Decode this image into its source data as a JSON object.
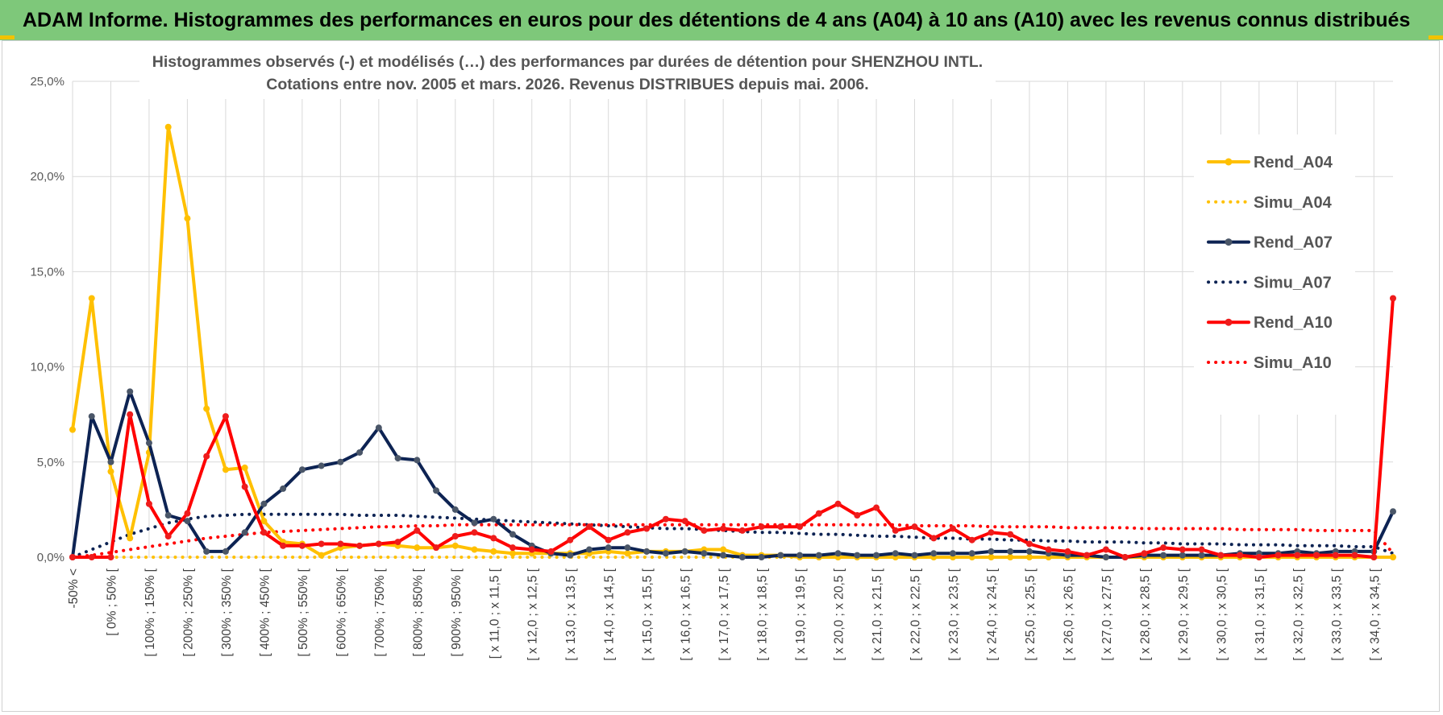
{
  "header": {
    "title": "ADAM Informe. Histogrammes des performances en euros pour des détentions de 4 ans (A04) à 10 ans (A10) avec les revenus connus distribués"
  },
  "colors": {
    "banner": "#7ec87a",
    "A04": "#ffc000",
    "A07": "#0d2353",
    "A10": "#ff0000",
    "marker_A04": "#ffc000",
    "marker_A07": "#4a5668",
    "marker_A10": "#ee1c1c",
    "grid": "#d9d9d9"
  },
  "chart_data": {
    "type": "line",
    "title_line1": "Histogrammes observés (-) et modélisés (…) des performances par durées de détention pour SHENZHOU INTL.",
    "title_line2": "Cotations entre nov. 2005 et mars. 2026.  Revenus DISTRIBUES depuis mai. 2006.",
    "xlabel": "",
    "ylabel": "",
    "ylim": [
      0,
      25
    ],
    "yticks": [
      "0,0%",
      "5,0%",
      "10,0%",
      "15,0%",
      "20,0%",
      "25,0%"
    ],
    "grid": true,
    "legend_position": "right",
    "legend": [
      "Rend_A04",
      "Simu_A04",
      "Rend_A07",
      "Simu_A07",
      "Rend_A10",
      "Simu_A10"
    ],
    "x_tick_labels": [
      "-50% <",
      "[ 0% ; 50% [",
      "[ 100% ; 150% [",
      "[ 200% ; 250% [",
      "[ 300% ; 350% [",
      "[ 400% ; 450% [",
      "[ 500% ; 550% [",
      "[ 600% ; 650% [",
      "[ 700% ; 750% [",
      "[ 800% ; 850% [",
      "[ 900% ; 950% [",
      "[ x 11,0 ; x 11,5 [",
      "[ x 12,0 ; x 12,5 [",
      "[ x 13,0 ; x 13,5 [",
      "[ x 14,0 ; x 14,5 [",
      "[ x 15,0 ; x 15,5 [",
      "[ x 16,0 ; x 16,5 [",
      "[ x 17,0 ; x 17,5 [",
      "[ x 18,0 ; x 18,5 [",
      "[ x 19,0 ; x 19,5 [",
      "[ x 20,0 ; x 20,5 [",
      "[ x 21,0 ; x 21,5 [",
      "[ x 22,0 ; x 22,5 [",
      "[ x 23,0 ; x 23,5 [",
      "[ x 24,0 ; x 24,5 [",
      "[ x 25,0 ; x 25,5 [",
      "[ x 26,0 ; x 26,5 [",
      "[ x 27,0 ; x 27,5 [",
      "[ x 28,0 ; x 28,5 [",
      "[ x 29,0 ; x 29,5 [",
      "[ x 30,0 ; x 30,5 [",
      "[ x 31,0 ; x 31,5 [",
      "[ x 32,0 ; x 32,5 [",
      "[ x 33,0 ; x 33,5 [",
      "[ x 34,0 ; x 34,5 ["
    ],
    "num_points": 70,
    "series": [
      {
        "name": "Rend_A04",
        "style": "solid",
        "values": [
          6.7,
          13.6,
          4.5,
          1.0,
          5.5,
          22.6,
          17.8,
          7.8,
          4.6,
          4.7,
          1.9,
          0.8,
          0.7,
          0.1,
          0.5,
          0.6,
          0.7,
          0.6,
          0.5,
          0.5,
          0.6,
          0.4,
          0.3,
          0.2,
          0.2,
          0.2,
          0.2,
          0.2,
          0.3,
          0.2,
          0.3,
          0.3,
          0.3,
          0.4,
          0.4,
          0.1,
          0.1,
          0.1,
          0.0,
          0.0,
          0.0,
          0.0,
          0.0,
          0.0,
          0.0,
          0.0,
          0.0,
          0.0,
          0.0,
          0.0,
          0.0,
          0.0,
          0.0,
          0.0,
          0.0,
          0.0,
          0.0,
          0.0,
          0.0,
          0.0,
          0.0,
          0.0,
          0.0,
          0.0,
          0.0,
          0.0,
          0.0,
          0.0,
          0.0,
          0.0
        ]
      },
      {
        "name": "Simu_A04",
        "style": "dotted",
        "values": [
          0.0,
          0.0,
          0.0,
          0.0,
          0.0,
          0.0,
          0.0,
          0.0,
          0.0,
          0.0,
          0.0,
          0.0,
          0.0,
          0.0,
          0.0,
          0.0,
          0.0,
          0.0,
          0.0,
          0.0,
          0.0,
          0.0,
          0.0,
          0.0,
          0.0,
          0.0,
          0.0,
          0.0,
          0.0,
          0.0,
          0.0,
          0.0,
          0.0,
          0.0,
          0.0,
          0.0,
          0.0,
          0.0,
          0.0,
          0.0,
          0.0,
          0.0,
          0.0,
          0.0,
          0.0,
          0.0,
          0.0,
          0.0,
          0.0,
          0.0,
          0.0,
          0.0,
          0.0,
          0.0,
          0.0,
          0.0,
          0.0,
          0.0,
          0.0,
          0.0,
          0.0,
          0.0,
          0.0,
          0.0,
          0.0,
          0.0,
          0.0,
          0.0,
          0.0,
          0.0
        ]
      },
      {
        "name": "Rend_A07",
        "style": "solid",
        "values": [
          0.0,
          7.4,
          5.0,
          8.7,
          6.0,
          2.2,
          1.9,
          0.3,
          0.3,
          1.3,
          2.8,
          3.6,
          4.6,
          4.8,
          5.0,
          5.5,
          6.8,
          5.2,
          5.1,
          3.5,
          2.5,
          1.8,
          2.0,
          1.2,
          0.6,
          0.2,
          0.1,
          0.4,
          0.5,
          0.5,
          0.3,
          0.2,
          0.3,
          0.2,
          0.1,
          0.0,
          0.0,
          0.1,
          0.1,
          0.1,
          0.2,
          0.1,
          0.1,
          0.2,
          0.1,
          0.2,
          0.2,
          0.2,
          0.3,
          0.3,
          0.3,
          0.2,
          0.1,
          0.1,
          0.0,
          0.0,
          0.1,
          0.1,
          0.1,
          0.1,
          0.1,
          0.2,
          0.2,
          0.2,
          0.3,
          0.2,
          0.3,
          0.3,
          0.3,
          2.4
        ]
      },
      {
        "name": "Simu_A07",
        "style": "dotted",
        "values": [
          0.0,
          0.4,
          0.8,
          1.2,
          1.5,
          1.8,
          2.0,
          2.15,
          2.2,
          2.25,
          2.25,
          2.25,
          2.25,
          2.25,
          2.25,
          2.2,
          2.2,
          2.2,
          2.15,
          2.1,
          2.05,
          2.0,
          1.95,
          1.9,
          1.85,
          1.8,
          1.75,
          1.7,
          1.65,
          1.6,
          1.55,
          1.5,
          1.5,
          1.45,
          1.4,
          1.35,
          1.3,
          1.3,
          1.25,
          1.2,
          1.2,
          1.15,
          1.1,
          1.1,
          1.05,
          1.0,
          1.0,
          0.95,
          0.95,
          0.9,
          0.9,
          0.85,
          0.85,
          0.8,
          0.8,
          0.8,
          0.75,
          0.75,
          0.7,
          0.7,
          0.7,
          0.65,
          0.65,
          0.65,
          0.6,
          0.6,
          0.6,
          0.55,
          0.55,
          0.2
        ]
      },
      {
        "name": "Rend_A10",
        "style": "solid",
        "values": [
          0.0,
          0.0,
          0.0,
          7.5,
          2.8,
          1.1,
          2.3,
          5.3,
          7.4,
          3.7,
          1.3,
          0.6,
          0.6,
          0.7,
          0.7,
          0.6,
          0.7,
          0.8,
          1.4,
          0.5,
          1.1,
          1.3,
          1.0,
          0.5,
          0.4,
          0.3,
          0.9,
          1.6,
          0.9,
          1.3,
          1.5,
          2.0,
          1.9,
          1.4,
          1.5,
          1.4,
          1.6,
          1.6,
          1.6,
          2.3,
          2.8,
          2.2,
          2.6,
          1.4,
          1.6,
          1.0,
          1.5,
          0.9,
          1.3,
          1.2,
          0.7,
          0.4,
          0.3,
          0.1,
          0.4,
          0.0,
          0.2,
          0.5,
          0.4,
          0.4,
          0.1,
          0.1,
          0.0,
          0.1,
          0.1,
          0.1,
          0.1,
          0.1,
          0.0,
          13.6
        ]
      },
      {
        "name": "Simu_A10",
        "style": "dotted",
        "values": [
          0.0,
          0.1,
          0.25,
          0.4,
          0.55,
          0.7,
          0.85,
          1.0,
          1.1,
          1.2,
          1.3,
          1.35,
          1.4,
          1.45,
          1.5,
          1.55,
          1.6,
          1.6,
          1.65,
          1.65,
          1.7,
          1.7,
          1.7,
          1.7,
          1.7,
          1.7,
          1.7,
          1.7,
          1.7,
          1.7,
          1.7,
          1.7,
          1.7,
          1.7,
          1.7,
          1.7,
          1.7,
          1.7,
          1.7,
          1.7,
          1.7,
          1.7,
          1.7,
          1.7,
          1.65,
          1.65,
          1.65,
          1.65,
          1.6,
          1.6,
          1.6,
          1.6,
          1.55,
          1.55,
          1.55,
          1.55,
          1.5,
          1.5,
          1.5,
          1.5,
          1.5,
          1.45,
          1.45,
          1.45,
          1.45,
          1.4,
          1.4,
          1.4,
          1.4,
          0.2
        ]
      }
    ]
  }
}
